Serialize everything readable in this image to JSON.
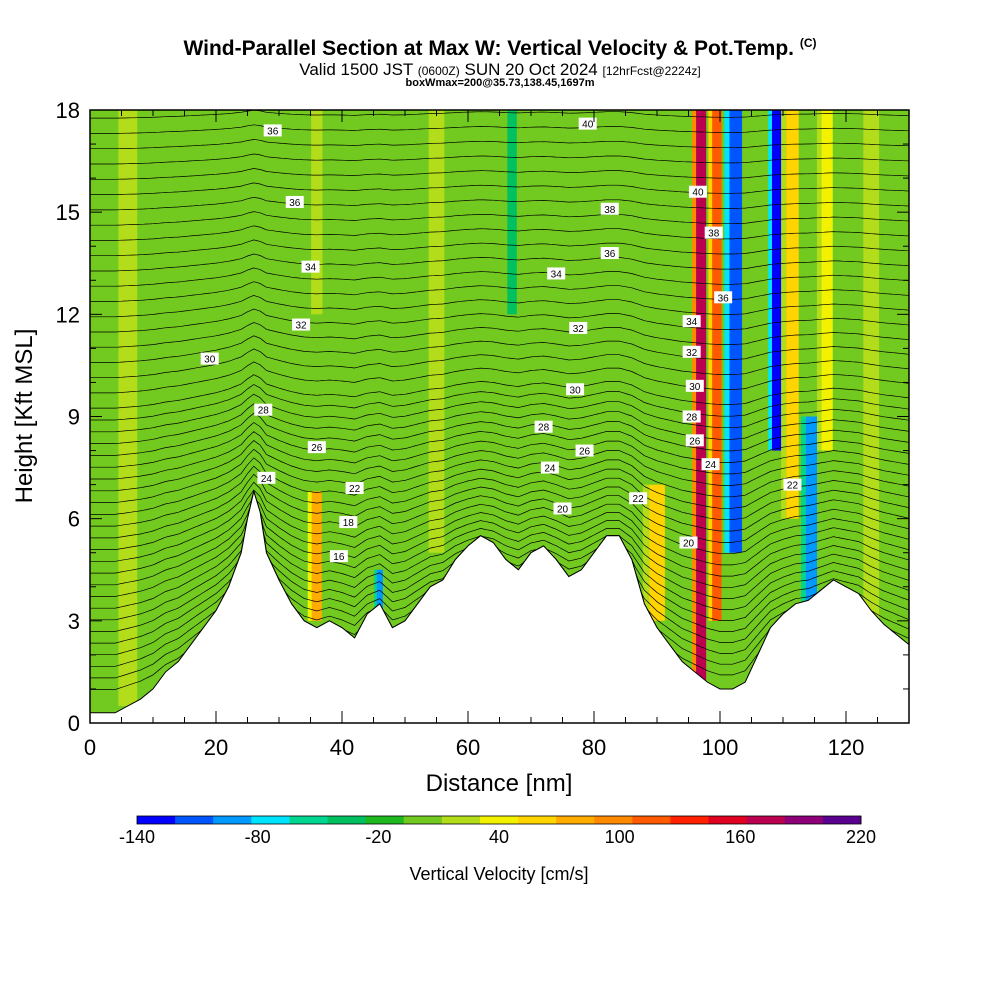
{
  "title": {
    "main": "Wind-Parallel Section at Max W: Vertical Velocity & Pot.Temp.",
    "copyright": "(C)",
    "valid_prefix": "Valid 1500 JST",
    "valid_z": "(0600Z)",
    "valid_date": "SUN 20 Oct 2024",
    "forecast": "[12hrFcst@2224z]",
    "box": "boxWmax=200@35.73,138.45,1697m"
  },
  "chart_data": {
    "type": "heatmap",
    "xlabel": "Distance [nm]",
    "ylabel": "Height [Kft MSL]",
    "xlim": [
      0,
      130
    ],
    "ylim": [
      0,
      18
    ],
    "xticks": [
      "0",
      "20",
      "40",
      "60",
      "80",
      "100",
      "120"
    ],
    "yticks": [
      "0",
      "3",
      "6",
      "9",
      "12",
      "15",
      "18"
    ],
    "colorbar": {
      "label": "Vertical Velocity [cm/s]",
      "ticks": [
        "-140",
        "-80",
        "-20",
        "40",
        "100",
        "160",
        "220"
      ],
      "levels": [
        -140,
        -120,
        -100,
        -80,
        -60,
        -40,
        -20,
        0,
        20,
        40,
        60,
        80,
        100,
        120,
        140,
        160,
        180,
        200,
        220
      ],
      "colors": [
        "#0000ff",
        "#0055ff",
        "#0099ff",
        "#00e5ff",
        "#00d68f",
        "#00c060",
        "#1fb81f",
        "#72c91f",
        "#b3dd1a",
        "#f2f200",
        "#ffd400",
        "#ffab00",
        "#ff8a00",
        "#ff5a00",
        "#ff2000",
        "#e00020",
        "#bb0050",
        "#8e0078",
        "#5a0090"
      ]
    },
    "background_w": 0,
    "w_features": [
      {
        "x": 97,
        "w": 1.6,
        "y0": 1,
        "y1": 18,
        "value": 190
      },
      {
        "x": 99.5,
        "w": 1.5,
        "y0": 3,
        "y1": 18,
        "value": 130
      },
      {
        "x": 102.5,
        "w": 2,
        "y0": 5,
        "y1": 18,
        "value": -110
      },
      {
        "x": 109,
        "w": 1.5,
        "y0": 8,
        "y1": 18,
        "value": -140
      },
      {
        "x": 111.5,
        "w": 2,
        "y0": 6,
        "y1": 18,
        "value": 60
      },
      {
        "x": 117,
        "w": 1.8,
        "y0": 8,
        "y1": 18,
        "value": 50
      },
      {
        "x": 114.5,
        "w": 1.8,
        "y0": 3.5,
        "y1": 9,
        "value": -90
      },
      {
        "x": 90,
        "w": 2.5,
        "y0": 3,
        "y1": 7,
        "value": 70
      },
      {
        "x": 36,
        "w": 1.6,
        "y0": 3,
        "y1": 6.8,
        "value": 80
      },
      {
        "x": 36,
        "w": 1.8,
        "y0": 12,
        "y1": 18,
        "value": 30
      },
      {
        "x": 46,
        "w": 1,
        "y0": 3,
        "y1": 4.5,
        "value": -90
      },
      {
        "x": 67,
        "w": 1.5,
        "y0": 12,
        "y1": 18,
        "value": -30
      },
      {
        "x": 6,
        "w": 3,
        "y0": 0.5,
        "y1": 18,
        "value": 20
      },
      {
        "x": 20,
        "w": 2.5,
        "y0": 4,
        "y1": 18,
        "value": 10
      },
      {
        "x": 55,
        "w": 2.5,
        "y0": 5,
        "y1": 18,
        "value": 20
      },
      {
        "x": 80,
        "w": 3,
        "y0": 5,
        "y1": 18,
        "value": 15
      },
      {
        "x": 124,
        "w": 2.5,
        "y0": 3,
        "y1": 18,
        "value": 20
      }
    ],
    "terrain": {
      "x": [
        0,
        2,
        4,
        6,
        8,
        10,
        12,
        14,
        16,
        18,
        20,
        22,
        24,
        25,
        26,
        27,
        28,
        30,
        32,
        34,
        36,
        38,
        40,
        42,
        44,
        46,
        48,
        50,
        52,
        54,
        56,
        58,
        60,
        62,
        64,
        66,
        68,
        70,
        72,
        74,
        76,
        78,
        80,
        82,
        84,
        86,
        88,
        90,
        92,
        94,
        96,
        98,
        100,
        102,
        104,
        106,
        108,
        110,
        112,
        114,
        116,
        118,
        120,
        122,
        124,
        126,
        128,
        130
      ],
      "y": [
        0.3,
        0.3,
        0.3,
        0.5,
        0.7,
        1.0,
        1.5,
        1.8,
        2.3,
        2.8,
        3.3,
        4.0,
        5.0,
        6.0,
        6.8,
        6.2,
        5.0,
        4.2,
        3.5,
        3.0,
        2.8,
        3.0,
        2.8,
        2.5,
        3.2,
        3.5,
        2.8,
        3.0,
        3.5,
        4.0,
        4.2,
        4.8,
        5.2,
        5.5,
        5.3,
        4.8,
        4.5,
        5.0,
        5.2,
        4.8,
        4.3,
        4.5,
        5.0,
        5.5,
        5.5,
        4.8,
        3.5,
        2.8,
        2.3,
        1.8,
        1.5,
        1.2,
        1.0,
        1.0,
        1.2,
        2.0,
        2.8,
        3.2,
        3.5,
        3.6,
        3.9,
        4.2,
        4.0,
        3.8,
        3.3,
        2.9,
        2.6,
        2.3
      ]
    },
    "isentropes": {
      "interval": 1,
      "labels": [
        {
          "x": 29,
          "y": 17.4,
          "text": "36"
        },
        {
          "x": 32.5,
          "y": 15.3,
          "text": "36"
        },
        {
          "x": 35,
          "y": 13.4,
          "text": "34"
        },
        {
          "x": 33.5,
          "y": 11.7,
          "text": "32"
        },
        {
          "x": 19,
          "y": 10.7,
          "text": "30"
        },
        {
          "x": 27.5,
          "y": 9.2,
          "text": "28"
        },
        {
          "x": 36,
          "y": 8.1,
          "text": "26"
        },
        {
          "x": 28,
          "y": 7.2,
          "text": "24"
        },
        {
          "x": 42,
          "y": 6.9,
          "text": "22"
        },
        {
          "x": 41,
          "y": 5.9,
          "text": "18"
        },
        {
          "x": 39.5,
          "y": 4.9,
          "text": "16"
        },
        {
          "x": 79,
          "y": 17.6,
          "text": "40"
        },
        {
          "x": 82.5,
          "y": 15.1,
          "text": "38"
        },
        {
          "x": 82.5,
          "y": 13.8,
          "text": "36"
        },
        {
          "x": 74,
          "y": 13.2,
          "text": "34"
        },
        {
          "x": 77.5,
          "y": 11.6,
          "text": "32"
        },
        {
          "x": 77,
          "y": 9.8,
          "text": "30"
        },
        {
          "x": 72,
          "y": 8.7,
          "text": "28"
        },
        {
          "x": 78.5,
          "y": 8.0,
          "text": "26"
        },
        {
          "x": 73,
          "y": 7.5,
          "text": "24"
        },
        {
          "x": 87,
          "y": 6.6,
          "text": "22"
        },
        {
          "x": 75,
          "y": 6.3,
          "text": "20"
        },
        {
          "x": 96.5,
          "y": 15.6,
          "text": "40"
        },
        {
          "x": 99,
          "y": 14.4,
          "text": "38"
        },
        {
          "x": 100.5,
          "y": 12.5,
          "text": "36"
        },
        {
          "x": 95.5,
          "y": 11.8,
          "text": "34"
        },
        {
          "x": 95.5,
          "y": 10.9,
          "text": "32"
        },
        {
          "x": 96,
          "y": 9.9,
          "text": "30"
        },
        {
          "x": 95.5,
          "y": 9.0,
          "text": "28"
        },
        {
          "x": 96,
          "y": 8.3,
          "text": "26"
        },
        {
          "x": 98.5,
          "y": 7.6,
          "text": "24"
        },
        {
          "x": 111.5,
          "y": 7.0,
          "text": "22"
        },
        {
          "x": 95,
          "y": 5.3,
          "text": "20"
        }
      ]
    }
  }
}
